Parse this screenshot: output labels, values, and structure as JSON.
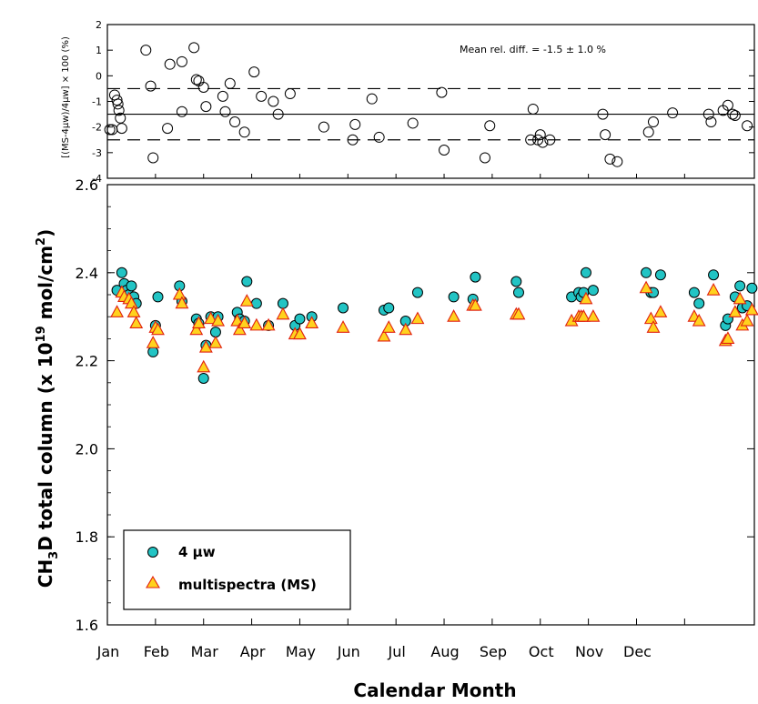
{
  "chart_data": [
    {
      "type": "scatter",
      "panel": "top",
      "ylabel": "[(MS-4μw)/4μw] × 100 (%)",
      "ylim": [
        -4,
        2
      ],
      "yticks": [
        "2",
        "1",
        "0",
        "-1",
        "-2",
        "-3",
        "-4"
      ],
      "annotation": "Mean rel. diff. = -1.5 ± 1.0 %",
      "reference_lines": {
        "solid": [
          -1.5
        ],
        "dashed": [
          -0.5,
          -2.5
        ]
      },
      "marker_color": "#000000",
      "points": [
        {
          "x": 0.05,
          "y": -2.1
        },
        {
          "x": 0.1,
          "y": -2.1
        },
        {
          "x": 0.15,
          "y": -0.75
        },
        {
          "x": 0.2,
          "y": -0.95
        },
        {
          "x": 0.22,
          "y": -1.1
        },
        {
          "x": 0.24,
          "y": -1.35
        },
        {
          "x": 0.27,
          "y": -1.65
        },
        {
          "x": 0.3,
          "y": -2.05
        },
        {
          "x": 0.8,
          "y": 1.0
        },
        {
          "x": 0.9,
          "y": -0.4
        },
        {
          "x": 0.95,
          "y": -3.2
        },
        {
          "x": 1.25,
          "y": -2.05
        },
        {
          "x": 1.3,
          "y": 0.45
        },
        {
          "x": 1.55,
          "y": 0.55
        },
        {
          "x": 1.55,
          "y": -1.4
        },
        {
          "x": 1.8,
          "y": 1.1
        },
        {
          "x": 1.85,
          "y": -0.15
        },
        {
          "x": 1.9,
          "y": -0.2
        },
        {
          "x": 2.0,
          "y": -0.45
        },
        {
          "x": 2.05,
          "y": -1.2
        },
        {
          "x": 2.4,
          "y": -0.8
        },
        {
          "x": 2.45,
          "y": -1.4
        },
        {
          "x": 2.55,
          "y": -0.3
        },
        {
          "x": 2.65,
          "y": -1.8
        },
        {
          "x": 2.85,
          "y": -2.2
        },
        {
          "x": 3.05,
          "y": 0.15
        },
        {
          "x": 3.2,
          "y": -0.8
        },
        {
          "x": 3.45,
          "y": -1.0
        },
        {
          "x": 3.55,
          "y": -1.5
        },
        {
          "x": 3.8,
          "y": -0.7
        },
        {
          "x": 4.5,
          "y": -2.0
        },
        {
          "x": 5.1,
          "y": -2.5
        },
        {
          "x": 5.15,
          "y": -1.9
        },
        {
          "x": 5.5,
          "y": -0.9
        },
        {
          "x": 5.65,
          "y": -2.4
        },
        {
          "x": 6.35,
          "y": -1.85
        },
        {
          "x": 6.95,
          "y": -0.65
        },
        {
          "x": 7.0,
          "y": -2.9
        },
        {
          "x": 7.85,
          "y": -3.2
        },
        {
          "x": 7.95,
          "y": -1.95
        },
        {
          "x": 8.8,
          "y": -2.5
        },
        {
          "x": 8.85,
          "y": -1.3
        },
        {
          "x": 8.95,
          "y": -2.5
        },
        {
          "x": 9.0,
          "y": -2.3
        },
        {
          "x": 9.05,
          "y": -2.6
        },
        {
          "x": 9.2,
          "y": -2.5
        },
        {
          "x": 10.3,
          "y": -1.5
        },
        {
          "x": 10.35,
          "y": -2.3
        },
        {
          "x": 10.45,
          "y": -3.25
        },
        {
          "x": 10.6,
          "y": -3.35
        },
        {
          "x": 11.25,
          "y": -2.2
        },
        {
          "x": 11.35,
          "y": -1.8
        },
        {
          "x": 11.75,
          "y": -1.45
        },
        {
          "x": 12.5,
          "y": -1.5
        },
        {
          "x": 12.55,
          "y": -1.8
        },
        {
          "x": 12.8,
          "y": -1.35
        },
        {
          "x": 12.9,
          "y": -1.15
        },
        {
          "x": 13.0,
          "y": -1.5
        },
        {
          "x": 13.05,
          "y": -1.55
        },
        {
          "x": 13.3,
          "y": -1.95
        }
      ]
    },
    {
      "type": "scatter",
      "panel": "main",
      "xlabel": "Calendar Month",
      "ylabel_parts": [
        "CH",
        "3",
        "D total column (x 10",
        "19",
        " mol/cm",
        "2",
        ")"
      ],
      "ylim": [
        1.6,
        2.6
      ],
      "yticks": [
        "2.6",
        "2.4",
        "2.2",
        "2.0",
        "1.8",
        "1.6"
      ],
      "categories": [
        "Jan",
        "Feb",
        "Mar",
        "Apr",
        "May",
        "Jun",
        "Jul",
        "Aug",
        "Sep",
        "Oct",
        "Nov",
        "Dec"
      ],
      "xlim": [
        0,
        13.45
      ],
      "series": [
        {
          "name": "4 μw",
          "marker": "circle",
          "color": "#22c4c4",
          "points": [
            {
              "x": 0.2,
              "y": 2.36
            },
            {
              "x": 0.3,
              "y": 2.4
            },
            {
              "x": 0.35,
              "y": 2.375
            },
            {
              "x": 0.4,
              "y": 2.36
            },
            {
              "x": 0.45,
              "y": 2.35
            },
            {
              "x": 0.5,
              "y": 2.37
            },
            {
              "x": 0.55,
              "y": 2.345
            },
            {
              "x": 0.6,
              "y": 2.33
            },
            {
              "x": 0.95,
              "y": 2.22
            },
            {
              "x": 1.0,
              "y": 2.28
            },
            {
              "x": 1.05,
              "y": 2.345
            },
            {
              "x": 1.5,
              "y": 2.37
            },
            {
              "x": 1.55,
              "y": 2.335
            },
            {
              "x": 1.85,
              "y": 2.295
            },
            {
              "x": 1.9,
              "y": 2.285
            },
            {
              "x": 2.0,
              "y": 2.16
            },
            {
              "x": 2.05,
              "y": 2.235
            },
            {
              "x": 2.15,
              "y": 2.3
            },
            {
              "x": 2.25,
              "y": 2.265
            },
            {
              "x": 2.3,
              "y": 2.3
            },
            {
              "x": 2.7,
              "y": 2.31
            },
            {
              "x": 2.75,
              "y": 2.295
            },
            {
              "x": 2.85,
              "y": 2.29
            },
            {
              "x": 2.9,
              "y": 2.38
            },
            {
              "x": 3.1,
              "y": 2.33
            },
            {
              "x": 3.35,
              "y": 2.28
            },
            {
              "x": 3.65,
              "y": 2.33
            },
            {
              "x": 3.9,
              "y": 2.28
            },
            {
              "x": 4.0,
              "y": 2.295
            },
            {
              "x": 4.25,
              "y": 2.3
            },
            {
              "x": 4.9,
              "y": 2.32
            },
            {
              "x": 5.75,
              "y": 2.315
            },
            {
              "x": 5.85,
              "y": 2.32
            },
            {
              "x": 6.2,
              "y": 2.29
            },
            {
              "x": 6.45,
              "y": 2.355
            },
            {
              "x": 7.2,
              "y": 2.345
            },
            {
              "x": 7.6,
              "y": 2.34
            },
            {
              "x": 7.65,
              "y": 2.39
            },
            {
              "x": 8.5,
              "y": 2.38
            },
            {
              "x": 8.55,
              "y": 2.355
            },
            {
              "x": 9.65,
              "y": 2.345
            },
            {
              "x": 9.8,
              "y": 2.355
            },
            {
              "x": 9.85,
              "y": 2.345
            },
            {
              "x": 9.9,
              "y": 2.355
            },
            {
              "x": 9.95,
              "y": 2.4
            },
            {
              "x": 10.1,
              "y": 2.36
            },
            {
              "x": 11.2,
              "y": 2.4
            },
            {
              "x": 11.3,
              "y": 2.355
            },
            {
              "x": 11.35,
              "y": 2.355
            },
            {
              "x": 11.5,
              "y": 2.395
            },
            {
              "x": 12.2,
              "y": 2.355
            },
            {
              "x": 12.3,
              "y": 2.33
            },
            {
              "x": 12.6,
              "y": 2.395
            },
            {
              "x": 12.85,
              "y": 2.28
            },
            {
              "x": 12.9,
              "y": 2.295
            },
            {
              "x": 13.05,
              "y": 2.345
            },
            {
              "x": 13.15,
              "y": 2.37
            },
            {
              "x": 13.2,
              "y": 2.32
            },
            {
              "x": 13.3,
              "y": 2.325
            },
            {
              "x": 13.4,
              "y": 2.365
            }
          ]
        },
        {
          "name": "multispectra (MS)",
          "marker": "triangle",
          "color": "#ffd21e",
          "edge_color": "#e02010",
          "points": [
            {
              "x": 0.2,
              "y": 2.31
            },
            {
              "x": 0.3,
              "y": 2.355
            },
            {
              "x": 0.35,
              "y": 2.345
            },
            {
              "x": 0.45,
              "y": 2.34
            },
            {
              "x": 0.5,
              "y": 2.33
            },
            {
              "x": 0.55,
              "y": 2.31
            },
            {
              "x": 0.6,
              "y": 2.285
            },
            {
              "x": 0.95,
              "y": 2.24
            },
            {
              "x": 1.0,
              "y": 2.275
            },
            {
              "x": 1.05,
              "y": 2.27
            },
            {
              "x": 1.5,
              "y": 2.35
            },
            {
              "x": 1.55,
              "y": 2.33
            },
            {
              "x": 1.85,
              "y": 2.27
            },
            {
              "x": 1.9,
              "y": 2.285
            },
            {
              "x": 2.0,
              "y": 2.185
            },
            {
              "x": 2.05,
              "y": 2.23
            },
            {
              "x": 2.15,
              "y": 2.295
            },
            {
              "x": 2.25,
              "y": 2.24
            },
            {
              "x": 2.3,
              "y": 2.29
            },
            {
              "x": 2.7,
              "y": 2.29
            },
            {
              "x": 2.75,
              "y": 2.27
            },
            {
              "x": 2.85,
              "y": 2.285
            },
            {
              "x": 2.9,
              "y": 2.335
            },
            {
              "x": 3.1,
              "y": 2.28
            },
            {
              "x": 3.35,
              "y": 2.28
            },
            {
              "x": 3.65,
              "y": 2.305
            },
            {
              "x": 3.9,
              "y": 2.26
            },
            {
              "x": 4.0,
              "y": 2.26
            },
            {
              "x": 4.25,
              "y": 2.285
            },
            {
              "x": 4.9,
              "y": 2.275
            },
            {
              "x": 5.75,
              "y": 2.255
            },
            {
              "x": 5.85,
              "y": 2.275
            },
            {
              "x": 6.2,
              "y": 2.27
            },
            {
              "x": 6.45,
              "y": 2.295
            },
            {
              "x": 7.2,
              "y": 2.3
            },
            {
              "x": 7.6,
              "y": 2.325
            },
            {
              "x": 7.65,
              "y": 2.325
            },
            {
              "x": 8.5,
              "y": 2.305
            },
            {
              "x": 8.55,
              "y": 2.305
            },
            {
              "x": 9.65,
              "y": 2.29
            },
            {
              "x": 9.8,
              "y": 2.3
            },
            {
              "x": 9.85,
              "y": 2.3
            },
            {
              "x": 9.9,
              "y": 2.3
            },
            {
              "x": 9.95,
              "y": 2.34
            },
            {
              "x": 10.1,
              "y": 2.3
            },
            {
              "x": 11.2,
              "y": 2.365
            },
            {
              "x": 11.3,
              "y": 2.295
            },
            {
              "x": 11.35,
              "y": 2.275
            },
            {
              "x": 11.5,
              "y": 2.31
            },
            {
              "x": 12.2,
              "y": 2.3
            },
            {
              "x": 12.3,
              "y": 2.29
            },
            {
              "x": 12.6,
              "y": 2.36
            },
            {
              "x": 12.85,
              "y": 2.245
            },
            {
              "x": 12.9,
              "y": 2.25
            },
            {
              "x": 13.05,
              "y": 2.31
            },
            {
              "x": 13.15,
              "y": 2.34
            },
            {
              "x": 13.2,
              "y": 2.28
            },
            {
              "x": 13.3,
              "y": 2.29
            },
            {
              "x": 13.4,
              "y": 2.315
            }
          ]
        }
      ]
    }
  ]
}
